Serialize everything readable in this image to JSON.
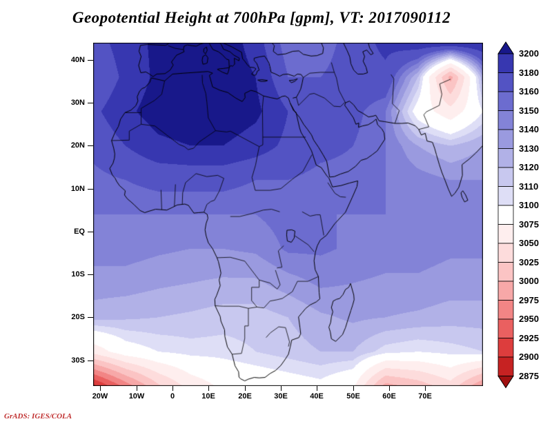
{
  "title": "Geopotential Height at 700hPa [gpm], VT: 2017090112",
  "attribution": "GrADS: IGES/COLA",
  "axes": {
    "lat_ticks": [
      {
        "label": "40N",
        "value": 40
      },
      {
        "label": "30N",
        "value": 30
      },
      {
        "label": "20N",
        "value": 20
      },
      {
        "label": "10N",
        "value": 10
      },
      {
        "label": "EQ",
        "value": 0
      },
      {
        "label": "10S",
        "value": -10
      },
      {
        "label": "20S",
        "value": -20
      },
      {
        "label": "30S",
        "value": -30
      }
    ],
    "lon_ticks": [
      {
        "label": "20W",
        "value": -20
      },
      {
        "label": "10W",
        "value": -10
      },
      {
        "label": "0",
        "value": 0
      },
      {
        "label": "10E",
        "value": 10
      },
      {
        "label": "20E",
        "value": 20
      },
      {
        "label": "30E",
        "value": 30
      },
      {
        "label": "40E",
        "value": 40
      },
      {
        "label": "50E",
        "value": 50
      },
      {
        "label": "60E",
        "value": 60
      },
      {
        "label": "70E",
        "value": 70
      }
    ]
  },
  "colorbar": {
    "levels": [
      2875,
      2900,
      2925,
      2950,
      2975,
      3000,
      3025,
      3050,
      3075,
      3100,
      3110,
      3120,
      3130,
      3140,
      3150,
      3160,
      3180,
      3200
    ],
    "labels_top_to_bottom": [
      "3200",
      "3180",
      "3160",
      "3150",
      "3140",
      "3130",
      "3120",
      "3110",
      "3100",
      "3075",
      "3050",
      "3025",
      "3000",
      "2975",
      "2950",
      "2925",
      "2900",
      "2875"
    ],
    "colors_low_to_high": [
      "#a01010",
      "#c62222",
      "#dd3d3d",
      "#ea6060",
      "#f28585",
      "#f7a8a8",
      "#fbc4c4",
      "#fddcdc",
      "#feeeee",
      "#ffffff",
      "#dedef6",
      "#c8c8ef",
      "#b1b1e7",
      "#9a9adf",
      "#8383d7",
      "#6c6ccf",
      "#5353c3",
      "#3737b0",
      "#18188a"
    ]
  },
  "chart_data": {
    "type": "heatmap",
    "title": "Geopotential Height at 700hPa [gpm], VT: 2017090112",
    "variable": "Geopotential Height",
    "pressure_level": "700hPa",
    "units": "gpm",
    "valid_time": "2017090112",
    "legend_position": "right",
    "lon_range": [
      -22,
      86
    ],
    "lat_range": [
      -36,
      44
    ],
    "grid_lons": [
      -22,
      -13,
      -4,
      5,
      14,
      23,
      32,
      41,
      50,
      59,
      68,
      77,
      86
    ],
    "grid_lats": [
      44,
      36,
      28,
      20,
      12,
      4,
      -4,
      -12,
      -20,
      -28,
      -36
    ],
    "values_gpm": [
      [
        3170,
        3190,
        3205,
        3210,
        3215,
        3190,
        3150,
        3150,
        3170,
        3185,
        3195,
        3200,
        3200
      ],
      [
        3160,
        3185,
        3205,
        3215,
        3215,
        3200,
        3160,
        3160,
        3170,
        3175,
        3120,
        2990,
        3130
      ],
      [
        3175,
        3195,
        3210,
        3215,
        3215,
        3205,
        3180,
        3170,
        3165,
        3150,
        3090,
        3060,
        3100
      ],
      [
        3165,
        3180,
        3195,
        3200,
        3200,
        3190,
        3175,
        3165,
        3160,
        3150,
        3130,
        3120,
        3130
      ],
      [
        3155,
        3160,
        3165,
        3165,
        3165,
        3160,
        3160,
        3155,
        3155,
        3150,
        3145,
        3140,
        3140
      ],
      [
        3150,
        3150,
        3150,
        3150,
        3150,
        3150,
        3155,
        3150,
        3150,
        3150,
        3148,
        3145,
        3145
      ],
      [
        3145,
        3145,
        3142,
        3140,
        3140,
        3142,
        3152,
        3152,
        3148,
        3145,
        3145,
        3142,
        3142
      ],
      [
        3135,
        3135,
        3132,
        3130,
        3128,
        3128,
        3135,
        3142,
        3140,
        3138,
        3138,
        3135,
        3135
      ],
      [
        3125,
        3122,
        3120,
        3118,
        3115,
        3115,
        3120,
        3128,
        3132,
        3130,
        3128,
        3125,
        3125
      ],
      [
        3060,
        3090,
        3100,
        3105,
        3105,
        3110,
        3115,
        3120,
        3120,
        3105,
        3100,
        3105,
        3110
      ],
      [
        2890,
        2960,
        3020,
        3060,
        3080,
        3085,
        3090,
        3095,
        3080,
        2990,
        3010,
        3040,
        2975
      ]
    ],
    "contour_levels": [
      2875,
      2900,
      2925,
      2950,
      2975,
      3000,
      3025,
      3050,
      3075,
      3100,
      3110,
      3120,
      3130,
      3140,
      3150,
      3160,
      3180,
      3200
    ]
  }
}
